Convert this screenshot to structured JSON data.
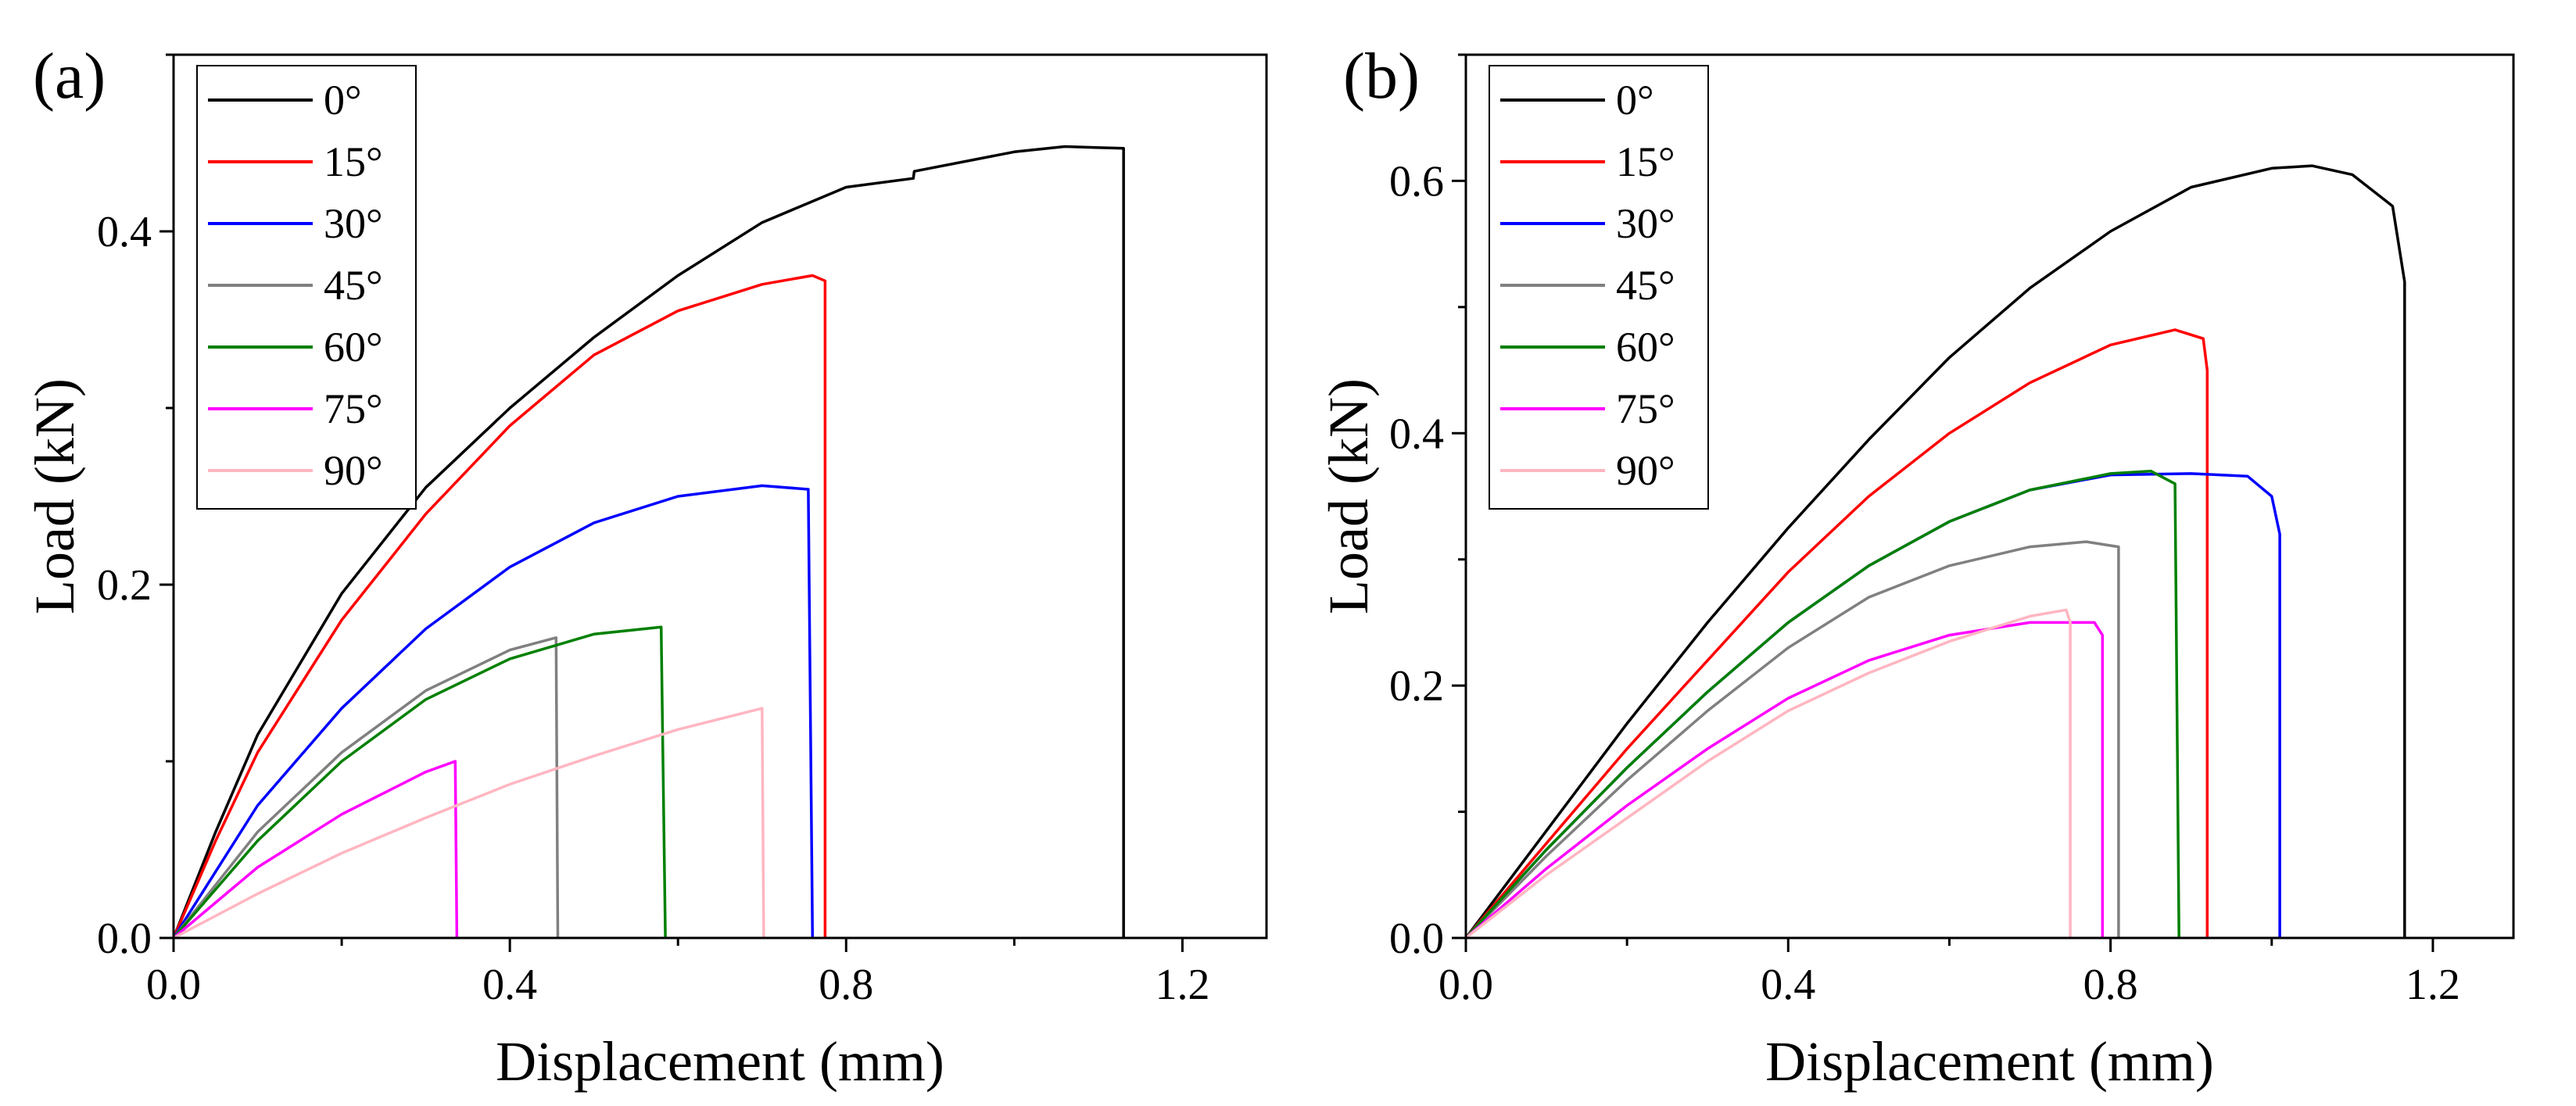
{
  "chart_data": [
    {
      "type": "line",
      "panel_label": "(a)",
      "xlabel": "Displacement (mm)",
      "ylabel": "Load (kN)",
      "xlim": [
        0,
        1.3
      ],
      "ylim": [
        0,
        0.5
      ],
      "xticks": [
        0.0,
        0.4,
        0.8,
        1.2
      ],
      "yticks": [
        0.0,
        0.2,
        0.4
      ],
      "xtick_labels": [
        "0.0",
        "0.4",
        "0.8",
        "1.2"
      ],
      "ytick_labels": [
        "0.0",
        "0.2",
        "0.4"
      ],
      "legend_position": "top-left",
      "series": [
        {
          "name": "0°",
          "color": "#000000",
          "points": [
            [
              0,
              0
            ],
            [
              0.05,
              0.06
            ],
            [
              0.1,
              0.115
            ],
            [
              0.2,
              0.195
            ],
            [
              0.3,
              0.255
            ],
            [
              0.4,
              0.3
            ],
            [
              0.5,
              0.34
            ],
            [
              0.6,
              0.375
            ],
            [
              0.7,
              0.405
            ],
            [
              0.8,
              0.425
            ],
            [
              0.88,
              0.43
            ],
            [
              0.881,
              0.434
            ],
            [
              1.0,
              0.445
            ],
            [
              1.06,
              0.448
            ],
            [
              1.13,
              0.447
            ],
            [
              1.13,
              0
            ]
          ]
        },
        {
          "name": "15°",
          "color": "#ff0000",
          "points": [
            [
              0,
              0
            ],
            [
              0.05,
              0.055
            ],
            [
              0.1,
              0.105
            ],
            [
              0.2,
              0.18
            ],
            [
              0.3,
              0.24
            ],
            [
              0.4,
              0.29
            ],
            [
              0.5,
              0.33
            ],
            [
              0.6,
              0.355
            ],
            [
              0.7,
              0.37
            ],
            [
              0.76,
              0.375
            ],
            [
              0.775,
              0.372
            ],
            [
              0.775,
              0
            ]
          ]
        },
        {
          "name": "30°",
          "color": "#0000ff",
          "points": [
            [
              0,
              0
            ],
            [
              0.1,
              0.075
            ],
            [
              0.2,
              0.13
            ],
            [
              0.3,
              0.175
            ],
            [
              0.4,
              0.21
            ],
            [
              0.5,
              0.235
            ],
            [
              0.6,
              0.25
            ],
            [
              0.7,
              0.256
            ],
            [
              0.755,
              0.254
            ],
            [
              0.76,
              0
            ]
          ]
        },
        {
          "name": "45°",
          "color": "#808080",
          "points": [
            [
              0,
              0
            ],
            [
              0.1,
              0.06
            ],
            [
              0.2,
              0.105
            ],
            [
              0.3,
              0.14
            ],
            [
              0.4,
              0.163
            ],
            [
              0.455,
              0.17
            ],
            [
              0.457,
              0
            ]
          ]
        },
        {
          "name": "60°",
          "color": "#008000",
          "points": [
            [
              0,
              0
            ],
            [
              0.1,
              0.055
            ],
            [
              0.2,
              0.1
            ],
            [
              0.3,
              0.135
            ],
            [
              0.4,
              0.158
            ],
            [
              0.5,
              0.172
            ],
            [
              0.58,
              0.176
            ],
            [
              0.585,
              0
            ]
          ]
        },
        {
          "name": "75°",
          "color": "#ff00ff",
          "points": [
            [
              0,
              0
            ],
            [
              0.1,
              0.04
            ],
            [
              0.2,
              0.07
            ],
            [
              0.3,
              0.094
            ],
            [
              0.335,
              0.1
            ],
            [
              0.337,
              0
            ]
          ]
        },
        {
          "name": "90°",
          "color": "#ffb6c1",
          "points": [
            [
              0,
              0
            ],
            [
              0.1,
              0.025
            ],
            [
              0.2,
              0.048
            ],
            [
              0.3,
              0.068
            ],
            [
              0.4,
              0.087
            ],
            [
              0.5,
              0.103
            ],
            [
              0.6,
              0.118
            ],
            [
              0.7,
              0.13
            ],
            [
              0.702,
              0
            ]
          ]
        }
      ]
    },
    {
      "type": "line",
      "panel_label": "(b)",
      "xlabel": "Displacement (mm)",
      "ylabel": "Load (kN)",
      "xlim": [
        0,
        1.3
      ],
      "ylim": [
        0,
        0.7
      ],
      "xticks": [
        0.0,
        0.4,
        0.8,
        1.2
      ],
      "yticks": [
        0.0,
        0.2,
        0.4,
        0.6
      ],
      "xtick_labels": [
        "0.0",
        "0.4",
        "0.8",
        "1.2"
      ],
      "ytick_labels": [
        "0.0",
        "0.2",
        "0.4",
        "0.6"
      ],
      "legend_position": "top-left",
      "series": [
        {
          "name": "0°",
          "color": "#000000",
          "points": [
            [
              0,
              0
            ],
            [
              0.1,
              0.085
            ],
            [
              0.2,
              0.17
            ],
            [
              0.3,
              0.25
            ],
            [
              0.4,
              0.325
            ],
            [
              0.5,
              0.395
            ],
            [
              0.6,
              0.46
            ],
            [
              0.7,
              0.515
            ],
            [
              0.8,
              0.56
            ],
            [
              0.9,
              0.595
            ],
            [
              1.0,
              0.61
            ],
            [
              1.05,
              0.612
            ],
            [
              1.1,
              0.605
            ],
            [
              1.15,
              0.58
            ],
            [
              1.165,
              0.52
            ],
            [
              1.165,
              0
            ]
          ]
        },
        {
          "name": "15°",
          "color": "#ff0000",
          "points": [
            [
              0,
              0
            ],
            [
              0.1,
              0.075
            ],
            [
              0.2,
              0.15
            ],
            [
              0.3,
              0.22
            ],
            [
              0.4,
              0.29
            ],
            [
              0.5,
              0.35
            ],
            [
              0.6,
              0.4
            ],
            [
              0.7,
              0.44
            ],
            [
              0.8,
              0.47
            ],
            [
              0.88,
              0.482
            ],
            [
              0.915,
              0.475
            ],
            [
              0.92,
              0.45
            ],
            [
              0.92,
              0
            ]
          ]
        },
        {
          "name": "30°",
          "color": "#0000ff",
          "points": [
            [
              0,
              0
            ],
            [
              0.1,
              0.07
            ],
            [
              0.2,
              0.135
            ],
            [
              0.3,
              0.195
            ],
            [
              0.4,
              0.25
            ],
            [
              0.5,
              0.295
            ],
            [
              0.6,
              0.33
            ],
            [
              0.7,
              0.355
            ],
            [
              0.8,
              0.367
            ],
            [
              0.9,
              0.368
            ],
            [
              0.97,
              0.366
            ],
            [
              1.0,
              0.35
            ],
            [
              1.01,
              0.32
            ],
            [
              1.01,
              0
            ]
          ]
        },
        {
          "name": "45°",
          "color": "#808080",
          "points": [
            [
              0,
              0
            ],
            [
              0.1,
              0.065
            ],
            [
              0.2,
              0.125
            ],
            [
              0.3,
              0.18
            ],
            [
              0.4,
              0.23
            ],
            [
              0.5,
              0.27
            ],
            [
              0.6,
              0.295
            ],
            [
              0.7,
              0.31
            ],
            [
              0.77,
              0.314
            ],
            [
              0.81,
              0.31
            ],
            [
              0.81,
              0
            ]
          ]
        },
        {
          "name": "60°",
          "color": "#008000",
          "points": [
            [
              0,
              0
            ],
            [
              0.1,
              0.07
            ],
            [
              0.2,
              0.135
            ],
            [
              0.3,
              0.195
            ],
            [
              0.4,
              0.25
            ],
            [
              0.5,
              0.295
            ],
            [
              0.6,
              0.33
            ],
            [
              0.7,
              0.355
            ],
            [
              0.8,
              0.368
            ],
            [
              0.85,
              0.37
            ],
            [
              0.88,
              0.36
            ],
            [
              0.885,
              0
            ]
          ]
        },
        {
          "name": "75°",
          "color": "#ff00ff",
          "points": [
            [
              0,
              0
            ],
            [
              0.1,
              0.055
            ],
            [
              0.2,
              0.105
            ],
            [
              0.3,
              0.15
            ],
            [
              0.4,
              0.19
            ],
            [
              0.5,
              0.22
            ],
            [
              0.6,
              0.24
            ],
            [
              0.7,
              0.25
            ],
            [
              0.78,
              0.25
            ],
            [
              0.79,
              0.24
            ],
            [
              0.79,
              0
            ]
          ]
        },
        {
          "name": "90°",
          "color": "#ffb6c1",
          "points": [
            [
              0,
              0
            ],
            [
              0.1,
              0.05
            ],
            [
              0.2,
              0.095
            ],
            [
              0.3,
              0.14
            ],
            [
              0.4,
              0.18
            ],
            [
              0.5,
              0.21
            ],
            [
              0.6,
              0.235
            ],
            [
              0.7,
              0.255
            ],
            [
              0.745,
              0.26
            ],
            [
              0.75,
              0.25
            ],
            [
              0.75,
              0
            ]
          ]
        }
      ]
    }
  ]
}
